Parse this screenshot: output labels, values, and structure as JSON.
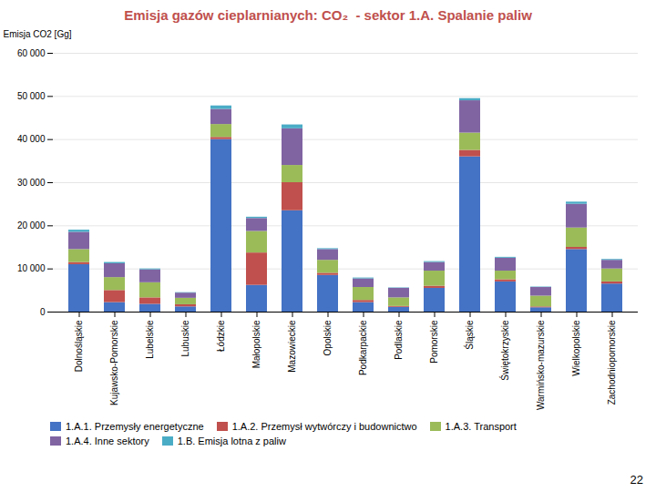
{
  "chart_data": {
    "type": "bar",
    "stacked": true,
    "title": "Emisja gazów cieplarnianych: CO₂  - sektor 1.A. Spalanie paliw",
    "ylabel": "Emisja CO2 [Gg]",
    "categories": [
      "Dolnośląskie",
      "Kujawsko-Pomorskie",
      "Lubelskie",
      "Lubuskie",
      "Łódzkie",
      "Małopolskie",
      "Mazowieckie",
      "Opolskie",
      "Podkarpackie",
      "Podlaskie",
      "Pomorskie",
      "Śląskie",
      "Świętokrzyskie",
      "Warmińsko-mazurskie",
      "Wielkopolskie",
      "Zachodniopomorskie"
    ],
    "series": [
      {
        "name": "1.A.1. Przemysły energetyczne",
        "color": "#4472C4",
        "values": [
          11000,
          2200,
          1800,
          1200,
          40000,
          6200,
          23500,
          8500,
          2200,
          1100,
          5500,
          36000,
          7000,
          1000,
          14500,
          6500
        ]
      },
      {
        "name": "1.A.2. Przemysł wytwórczy i budownictwo",
        "color": "#C0504D",
        "values": [
          500,
          2800,
          1500,
          500,
          500,
          7500,
          6500,
          500,
          500,
          200,
          500,
          1500,
          500,
          200,
          500,
          500
        ]
      },
      {
        "name": "1.A.3. Transport",
        "color": "#9BBB59",
        "values": [
          3000,
          3000,
          3500,
          1500,
          3000,
          5000,
          4000,
          3000,
          3000,
          2000,
          3500,
          4000,
          2000,
          2500,
          4500,
          3000
        ]
      },
      {
        "name": "1.A.4. Inne sektory",
        "color": "#8064A2",
        "values": [
          4000,
          3200,
          3000,
          1200,
          3500,
          3000,
          8500,
          2500,
          2000,
          2200,
          2000,
          7500,
          3000,
          2000,
          5500,
          2000
        ]
      },
      {
        "name": "1.B. Emisja lotna z paliw",
        "color": "#4BACC6",
        "values": [
          500,
          300,
          200,
          100,
          800,
          300,
          900,
          200,
          200,
          100,
          200,
          500,
          200,
          100,
          500,
          200
        ]
      }
    ],
    "ylim": [
      0,
      60000
    ],
    "yticks": [
      0,
      {
        "value": 10000,
        "label": "10 000"
      },
      {
        "value": 20000,
        "label": "20 000"
      },
      {
        "value": 30000,
        "label": "30 000"
      },
      {
        "value": 40000,
        "label": "40 000"
      },
      {
        "value": 50000,
        "label": "50 000"
      },
      {
        "value": 60000,
        "label": "60 000"
      }
    ],
    "grid": true,
    "legend": "lower left",
    "annotations": [
      {
        "text": "22"
      }
    ]
  }
}
